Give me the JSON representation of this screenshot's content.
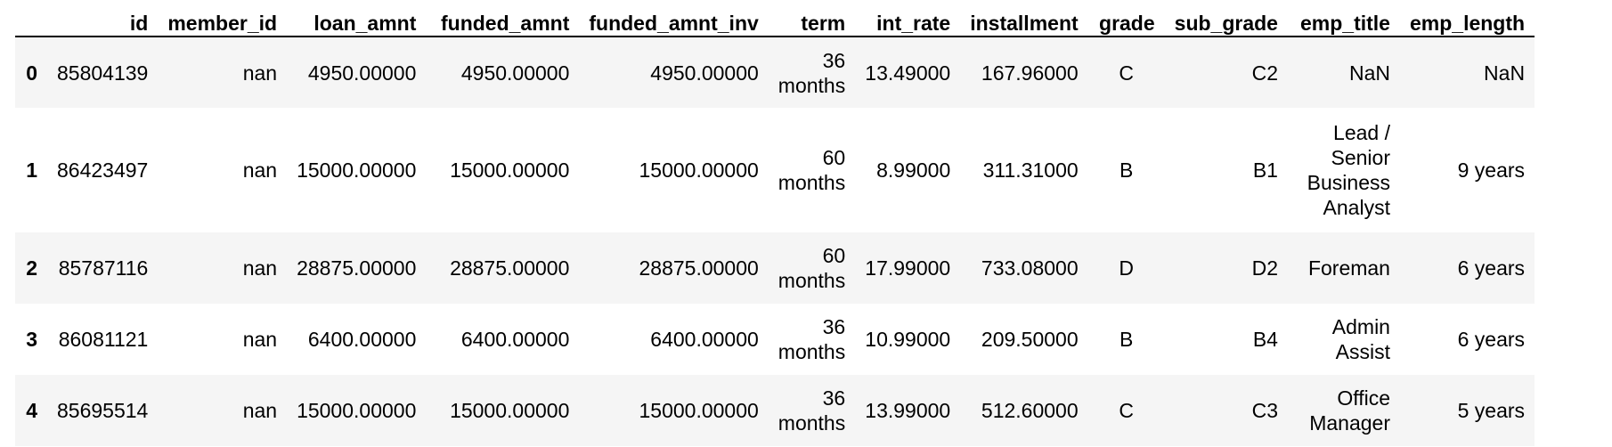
{
  "table": {
    "columns": [
      "",
      "id",
      "member_id",
      "loan_amnt",
      "funded_amnt",
      "funded_amnt_inv",
      "term",
      "int_rate",
      "installment",
      "grade",
      "sub_grade",
      "emp_title",
      "emp_length"
    ],
    "rows": [
      {
        "index": "0",
        "id": "85804139",
        "member_id": "nan",
        "loan_amnt": "4950.00000",
        "funded_amnt": "4950.00000",
        "funded_amnt_inv": "4950.00000",
        "term": [
          "36",
          "months"
        ],
        "int_rate": "13.49000",
        "installment": "167.96000",
        "grade": "C",
        "sub_grade": "C2",
        "emp_title": [
          "NaN"
        ],
        "emp_length": "NaN"
      },
      {
        "index": "1",
        "id": "86423497",
        "member_id": "nan",
        "loan_amnt": "15000.00000",
        "funded_amnt": "15000.00000",
        "funded_amnt_inv": "15000.00000",
        "term": [
          "60",
          "months"
        ],
        "int_rate": "8.99000",
        "installment": "311.31000",
        "grade": "B",
        "sub_grade": "B1",
        "emp_title": [
          "Lead /",
          "Senior",
          "Business",
          "Analyst"
        ],
        "emp_length": "9 years"
      },
      {
        "index": "2",
        "id": "85787116",
        "member_id": "nan",
        "loan_amnt": "28875.00000",
        "funded_amnt": "28875.00000",
        "funded_amnt_inv": "28875.00000",
        "term": [
          "60",
          "months"
        ],
        "int_rate": "17.99000",
        "installment": "733.08000",
        "grade": "D",
        "sub_grade": "D2",
        "emp_title": [
          "Foreman"
        ],
        "emp_length": "6 years"
      },
      {
        "index": "3",
        "id": "86081121",
        "member_id": "nan",
        "loan_amnt": "6400.00000",
        "funded_amnt": "6400.00000",
        "funded_amnt_inv": "6400.00000",
        "term": [
          "36",
          "months"
        ],
        "int_rate": "10.99000",
        "installment": "209.50000",
        "grade": "B",
        "sub_grade": "B4",
        "emp_title": [
          "Admin",
          "Assist"
        ],
        "emp_length": "6 years"
      },
      {
        "index": "4",
        "id": "85695514",
        "member_id": "nan",
        "loan_amnt": "15000.00000",
        "funded_amnt": "15000.00000",
        "funded_amnt_inv": "15000.00000",
        "term": [
          "36",
          "months"
        ],
        "int_rate": "13.99000",
        "installment": "512.60000",
        "grade": "C",
        "sub_grade": "C3",
        "emp_title": [
          "Office",
          "Manager"
        ],
        "emp_length": "5 years"
      }
    ]
  }
}
